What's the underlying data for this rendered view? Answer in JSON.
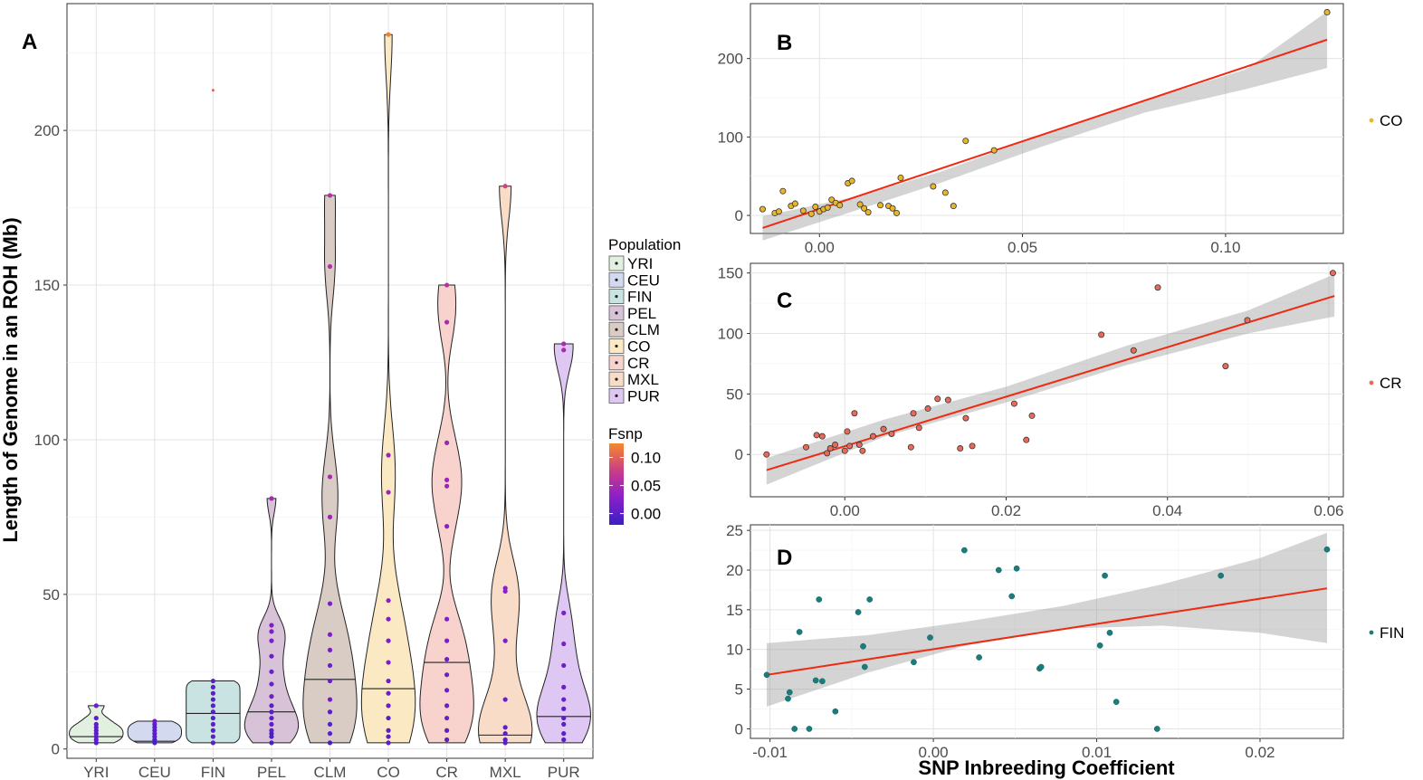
{
  "chart_data": [
    {
      "type": "violin",
      "panel": "A",
      "ylabel": "Length of Genome in an ROH (Mb)",
      "ylim": [
        -3,
        241
      ],
      "yticks": [
        0,
        50,
        100,
        150,
        200
      ],
      "categories": [
        "YRI",
        "CEU",
        "FIN",
        "PEL",
        "CLM",
        "CO",
        "CR",
        "MXL",
        "PUR"
      ],
      "fill_colors": [
        "#e1f0df",
        "#d3daf0",
        "#c9e3e3",
        "#d8c2d8",
        "#d9ccc4",
        "#fbe9c4",
        "#f8d2cc",
        "#f9dcc8",
        "#dec7f2"
      ],
      "medians": [
        4,
        2.5,
        11.5,
        12,
        22.5,
        19.5,
        28,
        4.5,
        10.5
      ],
      "ranges": [
        [
          2,
          14
        ],
        [
          2,
          9
        ],
        [
          2,
          22
        ],
        [
          2,
          81
        ],
        [
          2,
          179
        ],
        [
          2,
          231
        ],
        [
          2,
          150
        ],
        [
          2,
          182
        ],
        [
          2,
          131
        ]
      ],
      "points": [
        [
          2,
          3,
          4,
          5,
          6,
          7,
          8,
          10,
          14
        ],
        [
          2,
          3,
          4,
          5,
          6,
          7,
          8,
          9
        ],
        [
          2,
          4,
          6,
          8,
          10,
          12,
          14,
          16,
          18,
          20,
          22
        ],
        [
          2,
          4,
          5,
          6,
          8,
          10,
          12,
          14,
          17,
          21,
          25,
          30,
          35,
          38,
          40,
          81
        ],
        [
          2,
          5,
          8,
          12,
          16,
          22,
          27,
          32,
          37,
          47,
          75,
          88,
          156,
          179
        ],
        [
          2,
          4,
          6,
          10,
          14,
          18,
          22,
          28,
          35,
          42,
          48,
          83,
          95,
          231
        ],
        [
          3,
          6,
          10,
          14,
          19,
          24,
          29,
          35,
          42,
          72,
          85,
          87,
          99,
          138,
          150
        ],
        [
          2,
          3,
          5,
          7,
          16,
          35,
          51,
          52,
          182
        ],
        [
          3,
          5,
          8,
          10,
          13,
          16,
          20,
          27,
          34,
          44,
          129,
          131
        ]
      ],
      "point_fsnp": [
        [
          -0.01,
          0,
          0,
          0,
          0,
          0,
          0,
          0,
          0.01
        ],
        [
          -0.01,
          -0.01,
          0,
          0,
          0,
          0,
          0,
          0.01
        ],
        [
          0,
          0,
          0,
          0,
          0,
          0,
          0,
          0,
          0,
          0,
          0
        ],
        [
          -0.01,
          -0.01,
          -0.01,
          0,
          0,
          0,
          0,
          0,
          0.01,
          0.01,
          0.01,
          0.01,
          0.02,
          0.02,
          0.02,
          0.05
        ],
        [
          -0.01,
          0,
          0,
          0,
          0.01,
          0.01,
          0.01,
          0.02,
          0.02,
          0.02,
          0.04,
          0.05,
          0.06,
          0.06
        ],
        [
          0,
          0,
          0,
          0,
          0.01,
          0.01,
          0.01,
          0.02,
          0.02,
          0.02,
          0.03,
          0.04,
          0.04,
          0.12
        ],
        [
          0,
          0,
          0.01,
          0.01,
          0.01,
          0.01,
          0.01,
          0.02,
          0.02,
          0.03,
          0.04,
          0.04,
          0.04,
          0.05,
          0.06
        ],
        [
          0,
          0,
          0,
          0,
          0.01,
          0.02,
          0.03,
          0.03,
          0.08
        ],
        [
          0,
          0,
          0,
          0,
          0,
          0.01,
          0.01,
          0.01,
          0.02,
          0.02,
          0.05,
          0.05
        ]
      ],
      "outliers": [
        {
          "category": "FIN",
          "value": 213
        }
      ],
      "legend": {
        "title": "Population",
        "entries": [
          "YRI",
          "CEU",
          "FIN",
          "PEL",
          "CLM",
          "CO",
          "CR",
          "MXL",
          "PUR"
        ]
      },
      "colorbar": {
        "title": "Fsnp",
        "labels": [
          "0.10",
          "0.05",
          "0.00"
        ],
        "values": [
          0.1,
          0.05,
          0.0
        ],
        "range": [
          -0.02,
          0.125
        ]
      }
    },
    {
      "type": "scatter",
      "panel": "B",
      "legend_label": "CO",
      "point_color": "#e8b52b",
      "xlim": [
        -0.017,
        0.129
      ],
      "ylim": [
        -23,
        270
      ],
      "xticks": [
        "0.00",
        "0.05",
        "0.10"
      ],
      "xtick_values": [
        0,
        0.05,
        0.1
      ],
      "yticks": [
        0,
        100,
        200
      ],
      "fit": {
        "x": [
          -0.014,
          0.125
        ],
        "y": [
          -16,
          224
        ]
      },
      "band_upper": [
        [
          -0.014,
          -1
        ],
        [
          0.01,
          25
        ],
        [
          0.03,
          56
        ],
        [
          0.055,
          103
        ],
        [
          0.08,
          146
        ],
        [
          0.105,
          186
        ],
        [
          0.125,
          260
        ]
      ],
      "band_lower": [
        [
          -0.014,
          -32
        ],
        [
          0.01,
          8
        ],
        [
          0.03,
          42
        ],
        [
          0.055,
          88
        ],
        [
          0.08,
          131
        ],
        [
          0.105,
          161
        ],
        [
          0.125,
          188
        ]
      ],
      "x": [
        -0.014,
        -0.011,
        -0.009,
        -0.01,
        -0.007,
        -0.006,
        -0.004,
        -0.002,
        -0.001,
        0,
        0.001,
        0.002,
        0.003,
        0.004,
        0.005,
        0.007,
        0.008,
        0.01,
        0.011,
        0.012,
        0.015,
        0.017,
        0.018,
        0.019,
        0.02,
        0.028,
        0.031,
        0.033,
        0.036,
        0.043,
        0.125
      ],
      "y": [
        8,
        3,
        31,
        5,
        12,
        15,
        6,
        2,
        11,
        5,
        8,
        10,
        20,
        16,
        13,
        41,
        44,
        14,
        9,
        4,
        13,
        12,
        9,
        3,
        48,
        37,
        29,
        12,
        95,
        83,
        259
      ]
    },
    {
      "type": "scatter",
      "panel": "C",
      "legend_label": "CR",
      "point_color": "#e96a5a",
      "xlim": [
        -0.0117,
        0.0618
      ],
      "ylim": [
        -35,
        158
      ],
      "xticks": [
        "0.00",
        "0.02",
        "0.04",
        "0.06"
      ],
      "xtick_values": [
        0,
        0.02,
        0.04,
        0.06
      ],
      "yticks": [
        0,
        50,
        100,
        150
      ],
      "fit": {
        "x": [
          -0.0097,
          0.0607
        ],
        "y": [
          -13,
          131
        ]
      },
      "band_upper": [
        [
          -0.0097,
          -3
        ],
        [
          0.005,
          29
        ],
        [
          0.02,
          56
        ],
        [
          0.035,
          90
        ],
        [
          0.05,
          119
        ],
        [
          0.0607,
          149
        ]
      ],
      "band_lower": [
        [
          -0.0097,
          -25
        ],
        [
          0.005,
          15
        ],
        [
          0.02,
          43
        ],
        [
          0.035,
          74
        ],
        [
          0.05,
          100
        ],
        [
          0.0607,
          114
        ]
      ],
      "x": [
        -0.0097,
        -0.0048,
        -0.0035,
        -0.0028,
        -0.0022,
        -0.0018,
        -0.0012,
        0,
        0.0003,
        0.0006,
        0.0012,
        0.0018,
        0.0022,
        0.0035,
        0.0048,
        0.0058,
        0.0082,
        0.0085,
        0.0092,
        0.0103,
        0.0115,
        0.0128,
        0.0143,
        0.015,
        0.0158,
        0.021,
        0.0225,
        0.0232,
        0.0318,
        0.0358,
        0.0388,
        0.0472,
        0.0499,
        0.0605
      ],
      "y": [
        0,
        6,
        16,
        15,
        1,
        5,
        8,
        3,
        19,
        7,
        34,
        8,
        3,
        15,
        21,
        17,
        6,
        34,
        22,
        38,
        46,
        45,
        5,
        30,
        7,
        42,
        12,
        32,
        99,
        86,
        138,
        73,
        111,
        150
      ]
    },
    {
      "type": "scatter",
      "panel": "D",
      "legend_label": "FIN",
      "point_color": "#1b7c7c",
      "xlabel": "SNP Inbreeding Coefficient",
      "xlim": [
        -0.0112,
        0.0251
      ],
      "ylim": [
        -1.2,
        25.7
      ],
      "xticks": [
        "-0.01",
        "0.00",
        "0.01",
        "0.02"
      ],
      "xtick_values": [
        -0.01,
        0,
        0.01,
        0.02
      ],
      "yticks": [
        0,
        5,
        10,
        15,
        20,
        25
      ],
      "fit": {
        "x": [
          -0.0102,
          0.0241
        ],
        "y": [
          6.8,
          17.7
        ]
      },
      "band_upper": [
        [
          -0.0102,
          10.8
        ],
        [
          -0.004,
          11.8
        ],
        [
          0.002,
          13.5
        ],
        [
          0.008,
          15.5
        ],
        [
          0.014,
          18.2
        ],
        [
          0.02,
          21.5
        ],
        [
          0.0241,
          24.7
        ]
      ],
      "band_lower": [
        [
          -0.0102,
          2.8
        ],
        [
          -0.004,
          7.1
        ],
        [
          0.002,
          10.5
        ],
        [
          0.008,
          12.6
        ],
        [
          0.014,
          13
        ],
        [
          0.02,
          12.1
        ],
        [
          0.0241,
          10.8
        ]
      ],
      "x": [
        -0.0102,
        -0.0089,
        -0.0088,
        -0.0085,
        -0.0082,
        -0.0076,
        -0.0072,
        -0.007,
        -0.0068,
        -0.006,
        -0.0046,
        -0.0043,
        -0.0042,
        -0.0039,
        -0.0012,
        -0.0002,
        0.0019,
        0.0028,
        0.004,
        0.0048,
        0.0051,
        0.0065,
        0.0066,
        0.0102,
        0.0105,
        0.0108,
        0.0112,
        0.0137,
        0.0176,
        0.0241
      ],
      "y": [
        6.8,
        3.8,
        4.6,
        0,
        12.2,
        0,
        6.1,
        16.3,
        6,
        2.2,
        14.7,
        10.4,
        7.8,
        16.3,
        8.4,
        11.5,
        22.5,
        9,
        20,
        16.7,
        20.2,
        7.6,
        7.8,
        10.5,
        19.3,
        12.1,
        3.4,
        0,
        19.3,
        22.6
      ]
    }
  ]
}
